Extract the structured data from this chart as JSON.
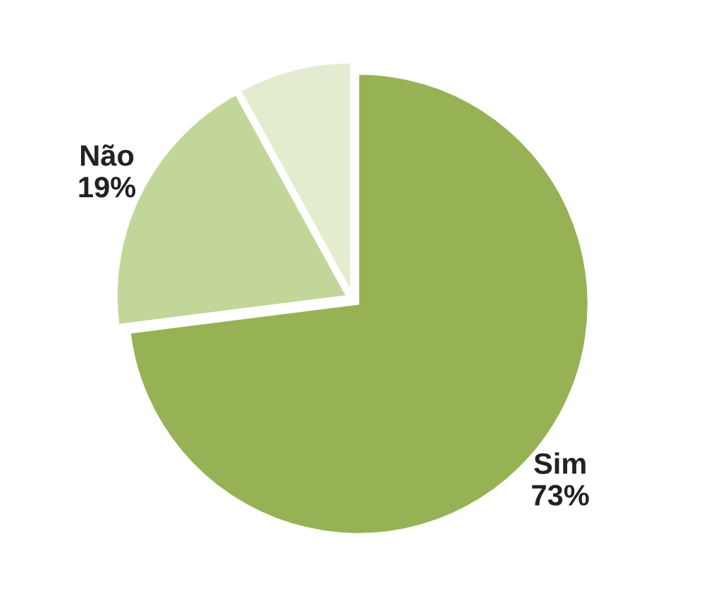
{
  "chart_data": {
    "type": "pie",
    "categories": [
      "Sim",
      "Não",
      null
    ],
    "values": [
      73,
      19,
      8
    ],
    "value_labels": [
      "73%",
      "19%",
      null
    ],
    "colors": [
      "#97b255",
      "#c3d69a",
      "#e4ecd0"
    ],
    "legend": false
  }
}
